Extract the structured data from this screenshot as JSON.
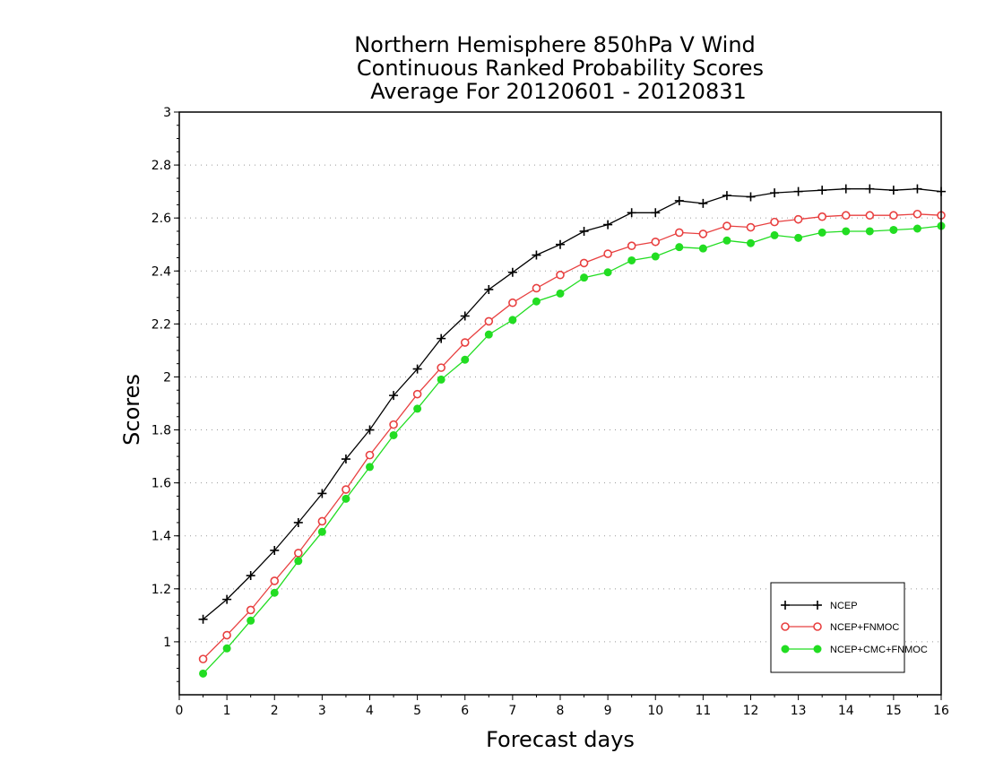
{
  "chart_data": {
    "type": "line",
    "title_lines": [
      "Northern Hemisphere 850hPa V Wind",
      "Continuous Ranked Probability Scores",
      "Average For 20120601 - 20120831"
    ],
    "xlabel": "Forecast days",
    "ylabel": "Scores",
    "xlim": [
      0,
      16
    ],
    "ylim": [
      0.8,
      3
    ],
    "xticks": [
      "0",
      "1",
      "2",
      "3",
      "4",
      "5",
      "6",
      "7",
      "8",
      "9",
      "10",
      "11",
      "12",
      "13",
      "14",
      "15",
      "16"
    ],
    "yticks": [
      "1",
      "1.2",
      "1.4",
      "1.6",
      "1.8",
      "2",
      "2.2",
      "2.4",
      "2.6",
      "2.8",
      "3"
    ],
    "grid": "horizontal-dotted",
    "legend_position": "bottom-right",
    "x": [
      0.5,
      1,
      1.5,
      2,
      2.5,
      3,
      3.5,
      4,
      4.5,
      5,
      5.5,
      6,
      6.5,
      7,
      7.5,
      8,
      8.5,
      9,
      9.5,
      10,
      10.5,
      11,
      11.5,
      12,
      12.5,
      13,
      13.5,
      14,
      14.5,
      15,
      15.5,
      16
    ],
    "series": [
      {
        "name": "NCEP",
        "color": "#000000",
        "marker": "plus",
        "values": [
          1.085,
          1.16,
          1.25,
          1.345,
          1.45,
          1.56,
          1.69,
          1.8,
          1.93,
          2.03,
          2.145,
          2.23,
          2.33,
          2.395,
          2.46,
          2.5,
          2.55,
          2.575,
          2.62,
          2.62,
          2.665,
          2.655,
          2.685,
          2.68,
          2.695,
          2.7,
          2.705,
          2.71,
          2.71,
          2.705,
          2.71,
          2.7
        ]
      },
      {
        "name": "NCEP+FNMOC",
        "color": "#e84040",
        "marker": "open-circle",
        "values": [
          0.935,
          1.025,
          1.12,
          1.23,
          1.335,
          1.455,
          1.575,
          1.705,
          1.82,
          1.935,
          2.035,
          2.13,
          2.21,
          2.28,
          2.335,
          2.385,
          2.43,
          2.465,
          2.495,
          2.51,
          2.545,
          2.54,
          2.57,
          2.565,
          2.585,
          2.595,
          2.605,
          2.61,
          2.61,
          2.61,
          2.615,
          2.61
        ]
      },
      {
        "name": "NCEP+CMC+FNMOC",
        "color": "#22dd22",
        "marker": "filled-circle",
        "values": [
          0.88,
          0.975,
          1.08,
          1.185,
          1.305,
          1.415,
          1.54,
          1.66,
          1.78,
          1.88,
          1.99,
          2.065,
          2.16,
          2.215,
          2.285,
          2.315,
          2.375,
          2.395,
          2.44,
          2.455,
          2.49,
          2.485,
          2.515,
          2.505,
          2.535,
          2.525,
          2.545,
          2.55,
          2.55,
          2.555,
          2.56,
          2.57
        ]
      }
    ]
  }
}
